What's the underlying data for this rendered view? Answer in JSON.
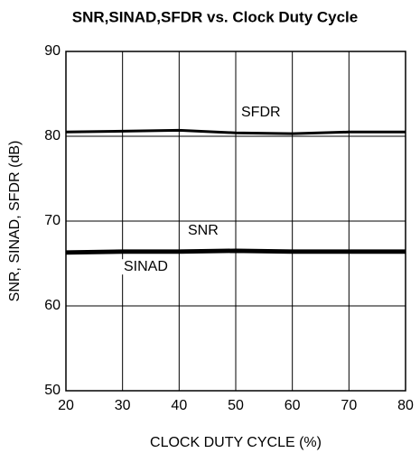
{
  "chart_data": {
    "type": "line",
    "title": "SNR,SINAD,SFDR vs. Clock Duty Cycle",
    "x_label": "CLOCK DUTY CYCLE (%)",
    "y_label": "SNR, SINAD, SFDR (dB)",
    "x": [
      20,
      30,
      40,
      50,
      60,
      70,
      80
    ],
    "series": [
      {
        "name": "SFDR",
        "color": "#000000",
        "values": [
          80.5,
          80.6,
          80.7,
          80.4,
          80.3,
          80.5,
          80.5
        ]
      },
      {
        "name": "SNR",
        "color": "#000000",
        "values": [
          66.4,
          66.5,
          66.5,
          66.6,
          66.5,
          66.5,
          66.5
        ]
      },
      {
        "name": "SINAD",
        "color": "#000000",
        "values": [
          66.2,
          66.3,
          66.3,
          66.4,
          66.3,
          66.3,
          66.3
        ]
      }
    ],
    "xlim": [
      20,
      80
    ],
    "xticks": [
      20,
      30,
      40,
      50,
      60,
      70,
      80
    ],
    "ylim": [
      50,
      90
    ],
    "yticks": [
      50,
      60,
      70,
      80,
      90
    ],
    "grid": true
  }
}
